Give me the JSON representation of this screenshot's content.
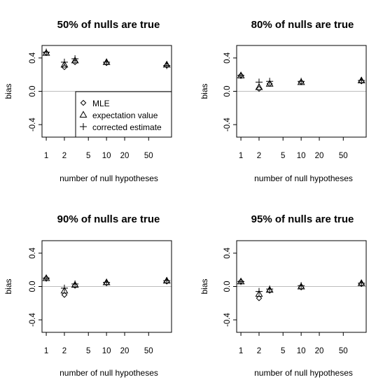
{
  "chart_data": [
    {
      "type": "scatter",
      "title": "50% of nulls are true",
      "xlabel": "number of null hypotheses",
      "ylabel": "bias",
      "xscale": "log",
      "xlim": [
        0.85,
        120
      ],
      "ylim": [
        -0.55,
        0.55
      ],
      "xticks": [
        1,
        2,
        5,
        10,
        20,
        50
      ],
      "yticks": [
        -0.4,
        0.0,
        0.4
      ],
      "x": [
        1,
        2,
        3,
        10,
        100
      ],
      "reference_line": 0,
      "legend": {
        "position": "bottom-right",
        "entries": [
          {
            "name": "MLE",
            "marker": "diamond"
          },
          {
            "name": "expectation value",
            "marker": "triangle"
          },
          {
            "name": "corrected estimate",
            "marker": "plus"
          }
        ]
      },
      "series": [
        {
          "name": "MLE",
          "marker": "diamond",
          "values": [
            0.46,
            0.29,
            0.35,
            0.34,
            0.31
          ]
        },
        {
          "name": "expectation value",
          "marker": "triangle",
          "values": [
            0.46,
            0.32,
            0.37,
            0.35,
            0.32
          ]
        },
        {
          "name": "corrected estimate",
          "marker": "plus",
          "values": [
            0.47,
            0.35,
            0.39,
            0.35,
            0.31
          ]
        }
      ]
    },
    {
      "type": "scatter",
      "title": "80% of nulls are true",
      "xlabel": "number of null hypotheses",
      "ylabel": "bias",
      "xscale": "log",
      "xlim": [
        0.85,
        120
      ],
      "ylim": [
        -0.55,
        0.55
      ],
      "xticks": [
        1,
        2,
        5,
        10,
        20,
        50
      ],
      "yticks": [
        -0.4,
        0.0,
        0.4
      ],
      "x": [
        1,
        2,
        3,
        10,
        100
      ],
      "reference_line": 0,
      "series": [
        {
          "name": "MLE",
          "marker": "diamond",
          "values": [
            0.19,
            0.03,
            0.09,
            0.11,
            0.12
          ]
        },
        {
          "name": "expectation value",
          "marker": "triangle",
          "values": [
            0.19,
            0.05,
            0.09,
            0.11,
            0.13
          ]
        },
        {
          "name": "corrected estimate",
          "marker": "plus",
          "values": [
            0.19,
            0.11,
            0.12,
            0.12,
            0.13
          ]
        }
      ]
    },
    {
      "type": "scatter",
      "title": "90% of nulls are true",
      "xlabel": "number of null hypotheses",
      "ylabel": "bias",
      "xscale": "log",
      "xlim": [
        0.85,
        120
      ],
      "ylim": [
        -0.55,
        0.55
      ],
      "xticks": [
        1,
        2,
        5,
        10,
        20,
        50
      ],
      "yticks": [
        -0.4,
        0.0,
        0.4
      ],
      "x": [
        1,
        2,
        3,
        10,
        100
      ],
      "reference_line": 0,
      "series": [
        {
          "name": "MLE",
          "marker": "diamond",
          "values": [
            0.1,
            -0.1,
            0.01,
            0.04,
            0.06
          ]
        },
        {
          "name": "expectation value",
          "marker": "triangle",
          "values": [
            0.1,
            -0.05,
            0.02,
            0.05,
            0.07
          ]
        },
        {
          "name": "corrected estimate",
          "marker": "plus",
          "values": [
            0.1,
            -0.02,
            0.03,
            0.05,
            0.07
          ]
        }
      ]
    },
    {
      "type": "scatter",
      "title": "95% of nulls are true",
      "xlabel": "number of null hypotheses",
      "ylabel": "bias",
      "xscale": "log",
      "xlim": [
        0.85,
        120
      ],
      "ylim": [
        -0.55,
        0.55
      ],
      "xticks": [
        1,
        2,
        5,
        10,
        20,
        50
      ],
      "yticks": [
        -0.4,
        0.0,
        0.4
      ],
      "x": [
        1,
        2,
        3,
        10,
        100
      ],
      "reference_line": 0,
      "series": [
        {
          "name": "MLE",
          "marker": "diamond",
          "values": [
            0.06,
            -0.14,
            -0.05,
            -0.01,
            0.03
          ]
        },
        {
          "name": "expectation value",
          "marker": "triangle",
          "values": [
            0.06,
            -0.09,
            -0.04,
            0.0,
            0.04
          ]
        },
        {
          "name": "corrected estimate",
          "marker": "plus",
          "values": [
            0.06,
            -0.06,
            -0.03,
            0.01,
            0.04
          ]
        }
      ]
    }
  ]
}
